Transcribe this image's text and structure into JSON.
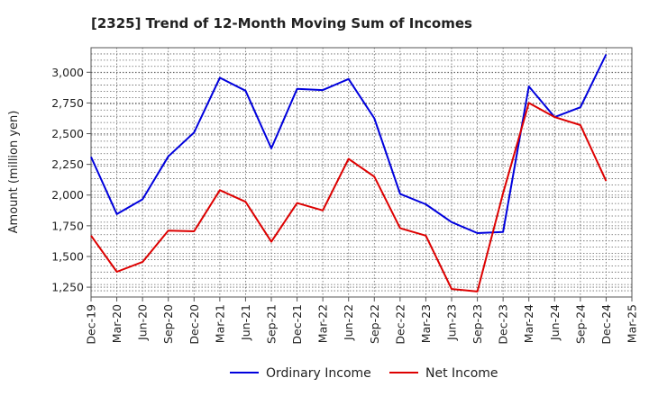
{
  "chart_data": {
    "type": "line",
    "title": "[2325]  Trend of 12-Month Moving Sum of Incomes",
    "xlabel": "",
    "ylabel": "Amount (million yen)",
    "ylim": [
      1170,
      3200
    ],
    "yticks": [
      1250,
      1500,
      1750,
      2000,
      2250,
      2500,
      2750,
      3000
    ],
    "ytick_labels": [
      "1,250",
      "1,500",
      "1,750",
      "2,000",
      "2,250",
      "2,500",
      "2,750",
      "3,000"
    ],
    "categories": [
      "Dec-19",
      "Mar-20",
      "Jun-20",
      "Sep-20",
      "Dec-20",
      "Mar-21",
      "Jun-21",
      "Sep-21",
      "Dec-21",
      "Mar-22",
      "Jun-22",
      "Sep-22",
      "Dec-22",
      "Mar-23",
      "Jun-23",
      "Sep-23",
      "Dec-23",
      "Mar-24",
      "Jun-24",
      "Sep-24",
      "Dec-24",
      "Mar-25"
    ],
    "grid": true,
    "legend_position": "bottom-center",
    "series": [
      {
        "name": "Ordinary Income",
        "color": "#0000dd",
        "values": [
          2310,
          1845,
          1965,
          2315,
          2510,
          2955,
          2850,
          2380,
          2865,
          2855,
          2945,
          2625,
          2010,
          1925,
          1780,
          1690,
          1700,
          2885,
          2635,
          2715,
          3145,
          null
        ]
      },
      {
        "name": "Net Income",
        "color": "#dd0000",
        "values": [
          1670,
          1375,
          1455,
          1710,
          1705,
          2040,
          1945,
          1620,
          1935,
          1875,
          2295,
          2150,
          1730,
          1670,
          1235,
          1215,
          2015,
          2750,
          2635,
          2570,
          2115,
          null
        ]
      }
    ]
  }
}
